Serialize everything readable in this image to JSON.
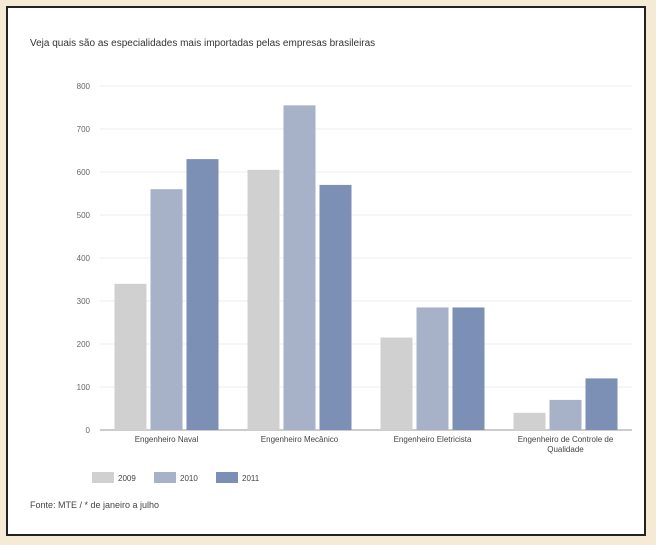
{
  "chart_data": {
    "type": "bar",
    "title": "Veja quais são as especialidades mais importadas pelas empresas brasileiras",
    "categories": [
      "Engenheiro Naval",
      "Engenheiro Mecânico",
      "Engenheiro Eletricista",
      "Engenheiro de Controle de Qualidade"
    ],
    "series": [
      {
        "name": "2009",
        "color": "#d0d0d0",
        "values": [
          340,
          605,
          215,
          40
        ]
      },
      {
        "name": "2010",
        "color": "#a7b2c9",
        "values": [
          560,
          755,
          285,
          70
        ]
      },
      {
        "name": "2011",
        "color": "#7c8fb4",
        "values": [
          630,
          570,
          285,
          120
        ]
      }
    ],
    "ylim": [
      0,
      800
    ],
    "yticks": [
      0,
      100,
      200,
      300,
      400,
      500,
      600,
      700,
      800
    ],
    "grid": true,
    "legend": "bottom-left",
    "xlabel": "",
    "ylabel": ""
  },
  "source": "Fonte: MTE / * de janeiro a julho"
}
